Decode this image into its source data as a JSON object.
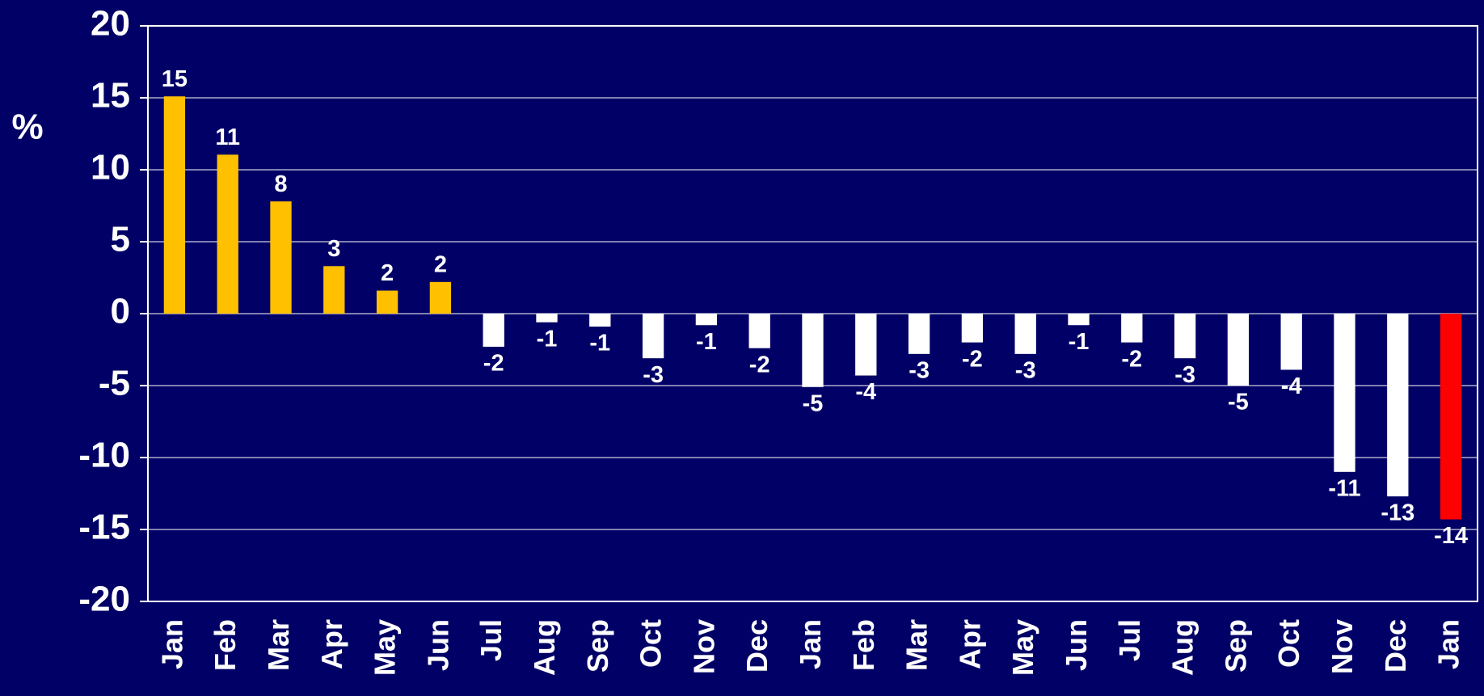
{
  "chart_data": {
    "type": "bar",
    "y_label": "%",
    "categories": [
      "Jan",
      "Feb",
      "Mar",
      "Apr",
      "May",
      "Jun",
      "Jul",
      "Aug",
      "Sep",
      "Oct",
      "Nov",
      "Dec",
      "Jan",
      "Feb",
      "Mar",
      "Apr",
      "May",
      "Jun",
      "Jul",
      "Aug",
      "Sep",
      "Oct",
      "Nov",
      "Dec",
      "Jan"
    ],
    "values": [
      15.1,
      11.05,
      7.8,
      3.3,
      1.6,
      2.2,
      -2.3,
      -0.6,
      -0.9,
      -3.1,
      -0.8,
      -2.4,
      -5.1,
      -4.3,
      -2.8,
      -2.0,
      -2.8,
      -0.8,
      -2.0,
      -3.1,
      -5.0,
      -3.9,
      -11.0,
      -12.7,
      -14.3
    ],
    "value_labels": [
      "15",
      "11",
      "8",
      "3",
      "2",
      "2",
      "-2",
      "-1",
      "-1",
      "-3",
      "-1",
      "-2",
      "-5",
      "-4",
      "-3",
      "-2",
      "-3",
      "-1",
      "-2",
      "-3",
      "-5",
      "-4",
      "-11",
      "-13",
      "-14"
    ],
    "colors": [
      "#ffc000",
      "#ffc000",
      "#ffc000",
      "#ffc000",
      "#ffc000",
      "#ffc000",
      "#ffffff",
      "#ffffff",
      "#ffffff",
      "#ffffff",
      "#ffffff",
      "#ffffff",
      "#ffffff",
      "#ffffff",
      "#ffffff",
      "#ffffff",
      "#ffffff",
      "#ffffff",
      "#ffffff",
      "#ffffff",
      "#ffffff",
      "#ffffff",
      "#ffffff",
      "#ffffff",
      "#ff0000"
    ],
    "ylim": [
      -20,
      20
    ],
    "yticks": [
      -20,
      -15,
      -10,
      -5,
      0,
      5,
      10,
      15,
      20
    ],
    "grid": true
  }
}
